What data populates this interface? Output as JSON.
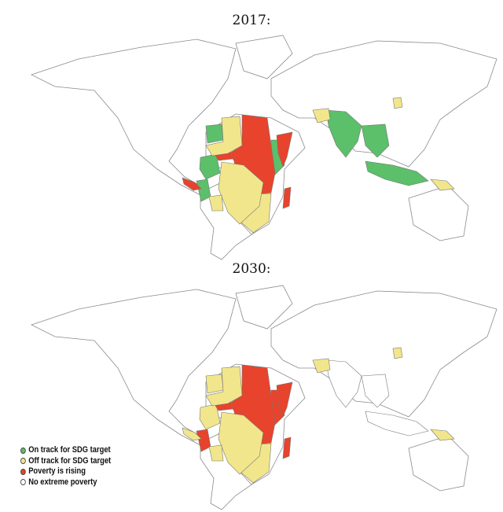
{
  "maps": [
    {
      "title": "2017:",
      "regions": {
        "india": "on_track",
        "se_asia": "on_track",
        "indonesia": "on_track",
        "west_africa_a": "on_track",
        "east_africa": "on_track",
        "colombia": "on_track",
        "peru": "on_track",
        "central_africa": "rising",
        "somalia": "rising",
        "madagascar": "rising",
        "venezuela": "rising",
        "central_america": "rising",
        "sahel": "off_track",
        "southern_africa": "off_track",
        "brazil": "off_track",
        "png": "off_track",
        "north_korea": "off_track",
        "afghanistan": "off_track",
        "bolivia": "off_track"
      }
    },
    {
      "title": "2030:",
      "regions": {
        "india": "none",
        "se_asia": "none",
        "indonesia": "none",
        "west_africa_a": "off_track",
        "east_africa": "rising",
        "colombia": "off_track",
        "peru": "rising",
        "central_africa": "rising",
        "somalia": "rising",
        "madagascar": "rising",
        "venezuela": "rising",
        "central_america": "off_track",
        "sahel": "off_track",
        "southern_africa": "off_track",
        "brazil": "off_track",
        "png": "off_track",
        "north_korea": "off_track",
        "afghanistan": "off_track",
        "bolivia": "off_track"
      }
    }
  ],
  "legend": [
    {
      "key": "on_track",
      "label": "On track for SDG target",
      "color": "#5cbf6a"
    },
    {
      "key": "off_track",
      "label": "Off track for SDG target",
      "color": "#f2e68c"
    },
    {
      "key": "rising",
      "label": "Poverty is rising",
      "color": "#e8432c"
    },
    {
      "key": "none",
      "label": "No extreme poverty",
      "color": "#ffffff"
    }
  ]
}
